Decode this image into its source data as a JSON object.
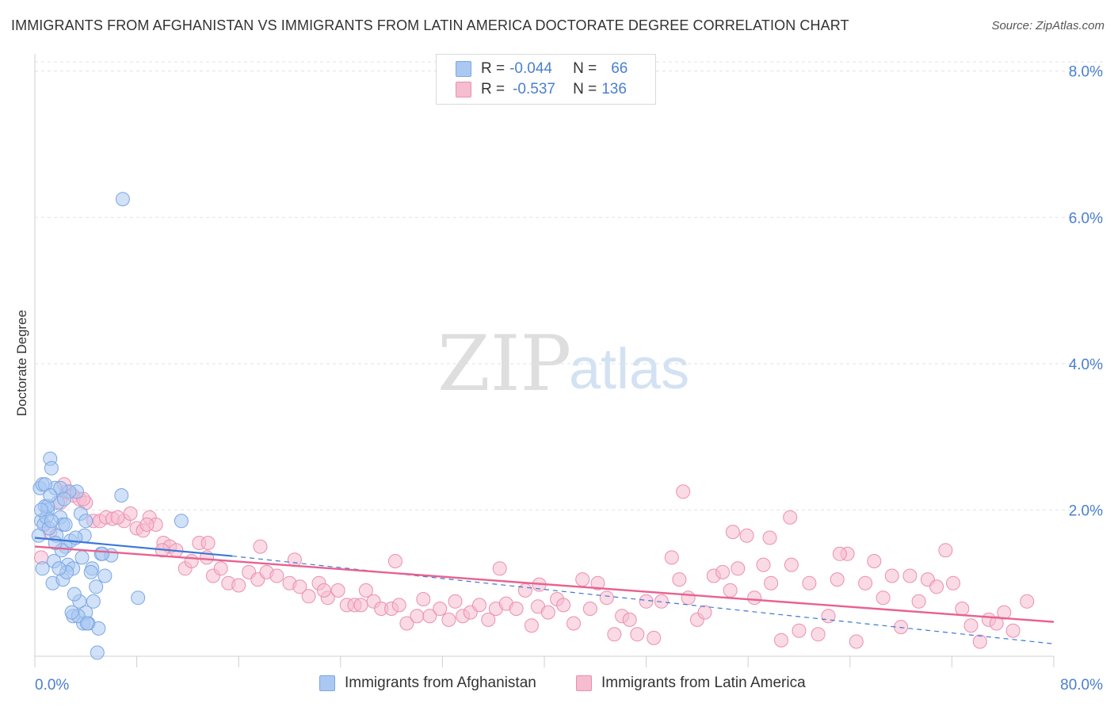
{
  "chart_data": {
    "type": "scatter",
    "title": "IMMIGRANTS FROM AFGHANISTAN VS IMMIGRANTS FROM LATIN AMERICA DOCTORATE DEGREE CORRELATION CHART",
    "source": "Source: ZipAtlas.com",
    "ylabel": "Doctorate Degree",
    "xlabel": "",
    "xlim": [
      0,
      80
    ],
    "ylim": [
      0,
      8.3
    ],
    "x_tick_labels": [
      "0.0%",
      "80.0%"
    ],
    "y_ticks": [
      2,
      4,
      6,
      8
    ],
    "y_tick_labels": [
      "2.0%",
      "4.0%",
      "6.0%",
      "8.0%"
    ],
    "grid": true,
    "legend": {
      "placement": "top-center",
      "rows": [
        {
          "r_label": "R = ",
          "r_value": "-0.044",
          "n_label": "N = ",
          "n_value": "66"
        },
        {
          "r_label": "R = ",
          "r_value": "-0.537",
          "n_label": "N = ",
          "n_value": "136"
        }
      ]
    },
    "watermark": {
      "zip": "ZIP",
      "atlas": "atlas"
    },
    "series": [
      {
        "name": "Immigrants from Afghanistan",
        "color": "#7ba7e3",
        "fill": "#aac8f2",
        "trend_color": "#3b78d8",
        "trend": {
          "x0": 0,
          "y0": 1.62,
          "x1": 15.5,
          "y1": 1.37,
          "dash_to_x": 80,
          "dash_to_y": 0.17
        },
        "points": [
          [
            0.4,
            2.3
          ],
          [
            0.6,
            2.35
          ],
          [
            0.8,
            2.05
          ],
          [
            1.0,
            2.0
          ],
          [
            1.2,
            2.7
          ],
          [
            1.3,
            2.57
          ],
          [
            0.5,
            1.85
          ],
          [
            0.7,
            1.8
          ],
          [
            1.6,
            2.3
          ],
          [
            1.8,
            2.1
          ],
          [
            2.0,
            1.9
          ],
          [
            2.2,
            1.8
          ],
          [
            2.4,
            1.5
          ],
          [
            2.6,
            1.25
          ],
          [
            1.4,
            1.0
          ],
          [
            1.7,
            1.65
          ],
          [
            2.8,
            1.58
          ],
          [
            3.0,
            1.2
          ],
          [
            3.3,
            2.25
          ],
          [
            3.6,
            1.95
          ],
          [
            4.0,
            1.85
          ],
          [
            4.5,
            1.2
          ],
          [
            3.5,
            0.75
          ],
          [
            4.8,
            0.95
          ],
          [
            5.2,
            1.4
          ],
          [
            5.5,
            1.1
          ],
          [
            6.0,
            1.38
          ],
          [
            6.8,
            2.2
          ],
          [
            3.0,
            0.55
          ],
          [
            3.8,
            0.45
          ],
          [
            4.2,
            0.45
          ],
          [
            4.6,
            0.75
          ],
          [
            5.0,
            0.38
          ],
          [
            4.0,
            0.6
          ],
          [
            2.2,
            1.05
          ],
          [
            1.5,
            1.3
          ],
          [
            2.5,
            1.15
          ],
          [
            1.9,
            1.2
          ],
          [
            0.9,
            1.9
          ],
          [
            1.1,
            1.75
          ],
          [
            2.7,
            2.25
          ],
          [
            3.9,
            1.65
          ],
          [
            4.4,
            1.15
          ],
          [
            0.3,
            1.65
          ],
          [
            0.6,
            1.2
          ],
          [
            2.0,
            2.3
          ],
          [
            3.2,
            1.62
          ],
          [
            4.9,
            0.05
          ],
          [
            8.1,
            0.8
          ],
          [
            11.5,
            1.85
          ],
          [
            6.9,
            6.25
          ],
          [
            1.3,
            1.85
          ],
          [
            2.3,
            2.15
          ],
          [
            1.0,
            2.05
          ],
          [
            0.8,
            2.35
          ],
          [
            3.4,
            0.55
          ],
          [
            4.1,
            0.45
          ],
          [
            2.9,
            0.6
          ],
          [
            5.3,
            1.4
          ],
          [
            2.1,
            1.45
          ],
          [
            1.6,
            1.55
          ],
          [
            3.7,
            1.35
          ],
          [
            0.5,
            2.0
          ],
          [
            1.2,
            2.2
          ],
          [
            2.4,
            1.8
          ],
          [
            3.1,
            0.85
          ]
        ]
      },
      {
        "name": "Immigrants from Latin America",
        "color": "#eb8fb0",
        "fill": "#f6bcd0",
        "trend_color": "#e8628f",
        "trend": {
          "x0": 0,
          "y0": 1.5,
          "x1": 80,
          "y1": 0.47
        },
        "points": [
          [
            0.5,
            1.35
          ],
          [
            1.2,
            1.7
          ],
          [
            2.0,
            2.1
          ],
          [
            2.5,
            2.25
          ],
          [
            3.0,
            2.2
          ],
          [
            3.5,
            2.15
          ],
          [
            4.0,
            2.1
          ],
          [
            4.6,
            1.85
          ],
          [
            5.1,
            1.85
          ],
          [
            5.6,
            1.9
          ],
          [
            6.1,
            1.88
          ],
          [
            7.0,
            1.85
          ],
          [
            7.5,
            1.95
          ],
          [
            8.0,
            1.75
          ],
          [
            8.5,
            1.72
          ],
          [
            9.0,
            1.9
          ],
          [
            9.5,
            1.8
          ],
          [
            10.1,
            1.55
          ],
          [
            10.6,
            1.5
          ],
          [
            11.1,
            1.45
          ],
          [
            11.8,
            1.2
          ],
          [
            12.3,
            1.3
          ],
          [
            12.9,
            1.55
          ],
          [
            13.5,
            1.35
          ],
          [
            14.0,
            1.1
          ],
          [
            14.6,
            1.2
          ],
          [
            15.2,
            1.0
          ],
          [
            16.0,
            0.97
          ],
          [
            16.8,
            1.15
          ],
          [
            17.5,
            1.05
          ],
          [
            18.2,
            1.15
          ],
          [
            19.0,
            1.1
          ],
          [
            20.0,
            1.0
          ],
          [
            20.8,
            0.95
          ],
          [
            21.5,
            0.82
          ],
          [
            22.3,
            1.0
          ],
          [
            23.0,
            0.8
          ],
          [
            23.8,
            0.9
          ],
          [
            24.5,
            0.7
          ],
          [
            25.1,
            0.7
          ],
          [
            26.0,
            0.9
          ],
          [
            26.6,
            0.75
          ],
          [
            27.2,
            0.65
          ],
          [
            28.0,
            0.65
          ],
          [
            28.6,
            0.7
          ],
          [
            29.2,
            0.45
          ],
          [
            30.0,
            0.55
          ],
          [
            30.5,
            0.78
          ],
          [
            31.0,
            0.55
          ],
          [
            31.8,
            0.65
          ],
          [
            32.5,
            0.5
          ],
          [
            33.0,
            0.75
          ],
          [
            33.6,
            0.55
          ],
          [
            34.2,
            0.6
          ],
          [
            34.9,
            0.7
          ],
          [
            35.6,
            0.5
          ],
          [
            36.2,
            0.65
          ],
          [
            37.0,
            0.72
          ],
          [
            37.8,
            0.65
          ],
          [
            38.5,
            0.9
          ],
          [
            39.0,
            0.42
          ],
          [
            39.5,
            0.68
          ],
          [
            40.3,
            0.6
          ],
          [
            41.0,
            0.78
          ],
          [
            41.5,
            0.7
          ],
          [
            42.3,
            0.45
          ],
          [
            43.0,
            1.05
          ],
          [
            43.6,
            0.65
          ],
          [
            44.2,
            1.0
          ],
          [
            44.9,
            0.8
          ],
          [
            45.5,
            0.3
          ],
          [
            46.1,
            0.55
          ],
          [
            46.7,
            0.5
          ],
          [
            47.3,
            0.3
          ],
          [
            48.0,
            0.75
          ],
          [
            48.6,
            0.25
          ],
          [
            49.2,
            0.75
          ],
          [
            50.0,
            1.35
          ],
          [
            50.6,
            1.05
          ],
          [
            51.3,
            0.8
          ],
          [
            52.0,
            0.5
          ],
          [
            52.6,
            0.6
          ],
          [
            53.3,
            1.1
          ],
          [
            54.0,
            1.15
          ],
          [
            54.6,
            0.9
          ],
          [
            55.2,
            1.2
          ],
          [
            55.9,
            1.65
          ],
          [
            56.5,
            0.8
          ],
          [
            57.2,
            1.25
          ],
          [
            57.8,
            1.0
          ],
          [
            58.6,
            0.22
          ],
          [
            59.4,
            1.25
          ],
          [
            60.0,
            0.35
          ],
          [
            60.8,
            1.0
          ],
          [
            61.5,
            0.3
          ],
          [
            62.3,
            0.55
          ],
          [
            63.0,
            1.05
          ],
          [
            63.8,
            1.4
          ],
          [
            64.5,
            0.2
          ],
          [
            65.2,
            1.0
          ],
          [
            65.9,
            1.3
          ],
          [
            66.6,
            0.8
          ],
          [
            67.3,
            1.1
          ],
          [
            68.0,
            0.4
          ],
          [
            68.7,
            1.1
          ],
          [
            69.4,
            0.75
          ],
          [
            70.1,
            1.05
          ],
          [
            70.8,
            0.95
          ],
          [
            71.5,
            1.45
          ],
          [
            72.1,
            1.0
          ],
          [
            72.8,
            0.65
          ],
          [
            73.5,
            0.42
          ],
          [
            74.2,
            0.2
          ],
          [
            74.9,
            0.5
          ],
          [
            75.5,
            0.45
          ],
          [
            76.1,
            0.6
          ],
          [
            76.8,
            0.35
          ],
          [
            77.9,
            0.75
          ],
          [
            28.3,
            1.3
          ],
          [
            36.5,
            1.2
          ],
          [
            50.9,
            2.25
          ],
          [
            54.8,
            1.7
          ],
          [
            59.3,
            1.9
          ],
          [
            57.7,
            1.62
          ],
          [
            63.2,
            1.4
          ],
          [
            20.4,
            1.32
          ],
          [
            13.6,
            1.55
          ],
          [
            10.0,
            1.45
          ],
          [
            3.8,
            2.15
          ],
          [
            2.3,
            2.35
          ],
          [
            6.5,
            1.9
          ],
          [
            8.8,
            1.8
          ],
          [
            17.7,
            1.5
          ],
          [
            22.7,
            0.9
          ],
          [
            25.6,
            0.7
          ],
          [
            39.6,
            0.98
          ]
        ]
      }
    ]
  }
}
